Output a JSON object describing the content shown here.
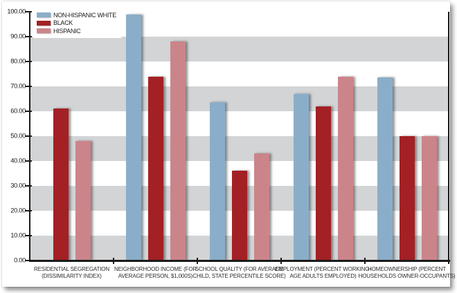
{
  "chart_data": {
    "type": "bar",
    "title": "",
    "categories": [
      {
        "label": "RESIDENTIAL SEGREGATION (DISSIMILARITY INDEX)",
        "lines": [
          "RESIDENTIAL SEGREGATION",
          "(DISSIMILARITY INDEX)"
        ]
      },
      {
        "label": "NEIGHBORHOOD INCOME (FOR AVERAGE PERSON, $1,000S)",
        "lines": [
          "NEIGHBORHOOD INCOME (FOR",
          "AVERAGE PERSON, $1,000S)"
        ]
      },
      {
        "label": "SCHOOL QUALITY (FOR AVERAGE CHILD, STATE PERCENTILE SCORE)",
        "lines": [
          "SCHOOL QUALITY (FOR AVERAGE",
          "CHILD, STATE PERCENTILE SCORE)"
        ]
      },
      {
        "label": "EMPLOYMENT (PERCENT WORKING-AGE ADULTS EMPLOYED)",
        "lines": [
          "EMPLOYMENT (PERCENT WORKING-",
          "AGE ADULTS EMPLOYED)"
        ]
      },
      {
        "label": "HOMEOWNERSHIP (PERCENT HOUSEHOLDS OWNER-OCCUPANTS)",
        "lines": [
          "HOMEOWNERSHIP (PERCENT",
          "HOUSEHOLDS OWNER-OCCUPANTS)"
        ]
      }
    ],
    "series": [
      {
        "name": "NON-HISPANIC WHITE",
        "color": "#8AAEC9",
        "values": [
          null,
          99,
          63.5,
          67,
          73.5
        ]
      },
      {
        "name": "BLACK",
        "color": "#A32024",
        "values": [
          61,
          74,
          36,
          62,
          50
        ]
      },
      {
        "name": "HISPANIC",
        "color": "#CB858A",
        "values": [
          48,
          88,
          43,
          74,
          50
        ]
      }
    ],
    "ylim": [
      0,
      100
    ],
    "ytick_step": 10,
    "ytick_label_format": "two_decimals",
    "ytick_labels": [
      "0.00",
      "10.00",
      "20.00",
      "30.00",
      "40.00",
      "50.00",
      "60.00",
      "70.00",
      "80.00",
      "90.00",
      "100.00"
    ],
    "legend_position": "top-left",
    "grid_bands_on": true,
    "band_decades": [
      [
        80,
        90
      ],
      [
        60,
        70
      ],
      [
        40,
        50
      ],
      [
        20,
        30
      ],
      [
        0,
        10
      ]
    ],
    "band_color": "#D2D4D6",
    "axis_color": "#1A1A1A",
    "background_color": "#FFFFFF"
  }
}
